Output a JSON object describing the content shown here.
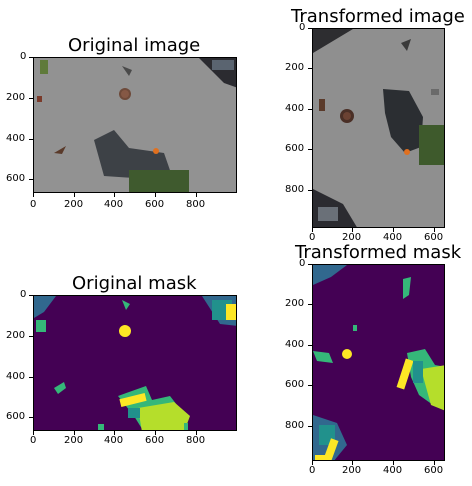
{
  "panels": {
    "orig_image": {
      "title": "Original image",
      "x_ticks": [
        "0",
        "200",
        "400",
        "600",
        "800"
      ],
      "y_ticks": [
        "0",
        "200",
        "400",
        "600"
      ]
    },
    "trans_image": {
      "title": "Transformed image",
      "x_ticks": [
        "0",
        "200",
        "400",
        "600"
      ],
      "y_ticks": [
        "0",
        "200",
        "400",
        "600",
        "800"
      ]
    },
    "orig_mask": {
      "title": "Original mask",
      "x_ticks": [
        "0",
        "200",
        "400",
        "600",
        "800"
      ],
      "y_ticks": [
        "0",
        "200",
        "400",
        "600"
      ]
    },
    "trans_mask": {
      "title": "Transformed mask",
      "x_ticks": [
        "0",
        "200",
        "400",
        "600"
      ],
      "y_ticks": [
        "0",
        "200",
        "400",
        "600",
        "800"
      ]
    }
  },
  "colors": {
    "mask_bg": "#440154",
    "mask_blue": "#31688e",
    "mask_teal": "#21918c",
    "mask_green": "#35b779",
    "mask_lime": "#b5de2b",
    "mask_yellow": "#fde725",
    "ground": "#8d8d8d"
  }
}
